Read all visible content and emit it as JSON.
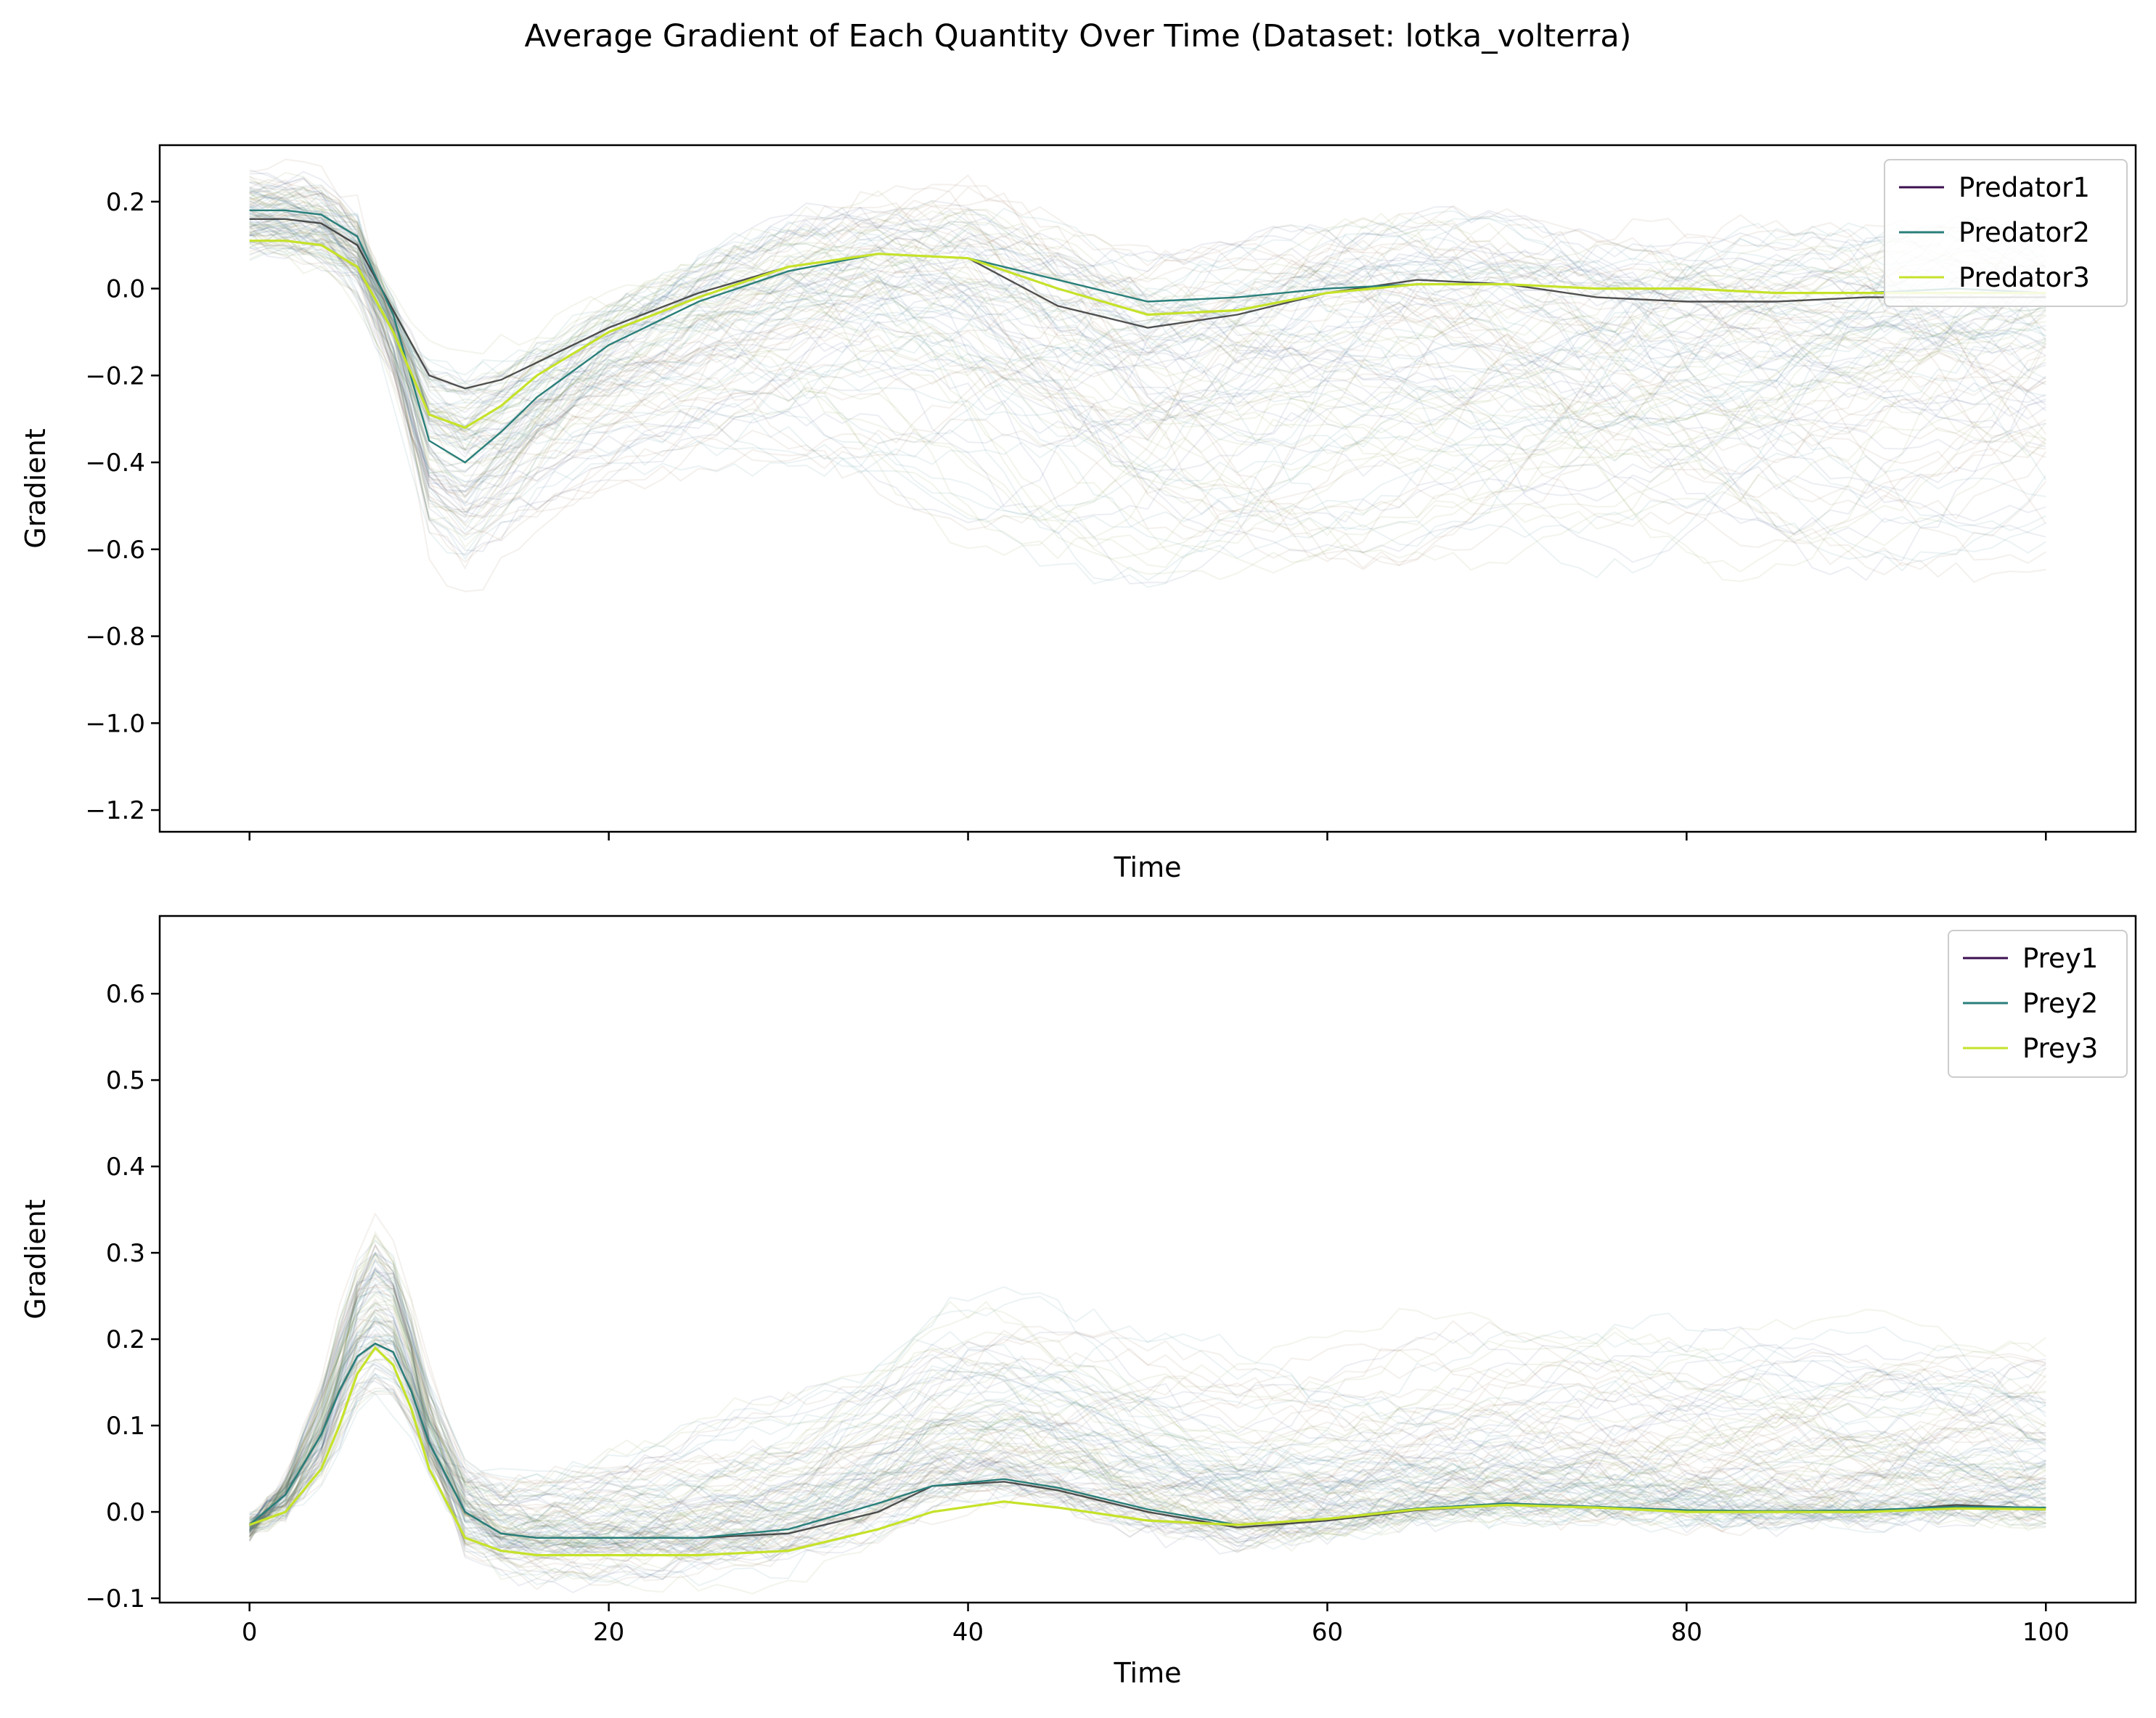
{
  "figure_title": "Average Gradient of Each Quantity Over Time (Dataset: lotka_volterra)",
  "colors": {
    "series1": "#3b0f4f",
    "series2": "#2a7f7a",
    "series3": "#c6e22a",
    "band_green": "#6f8f2a",
    "band_teal": "#2f7f86",
    "band_navy": "#2b3f78",
    "band_brown": "#8a5a3a"
  },
  "chart_data": [
    {
      "type": "line",
      "name": "predators",
      "xlabel": "Time",
      "ylabel": "Gradient",
      "xlim": [
        -5,
        105
      ],
      "ylim": [
        -1.25,
        0.33
      ],
      "xticks": [
        0,
        20,
        40,
        60,
        80,
        100
      ],
      "show_xtick_labels": false,
      "yticks": [
        -1.2,
        -1.0,
        -0.8,
        -0.6,
        -0.4,
        -0.2,
        0.0,
        0.2
      ],
      "ytick_labels": [
        "−1.2",
        "−1.0",
        "−0.8",
        "−0.6",
        "−0.4",
        "−0.2",
        "0.0",
        "0.2"
      ],
      "grid": false,
      "legend_position": "top-right",
      "x": [
        0,
        2,
        4,
        6,
        8,
        10,
        12,
        14,
        16,
        20,
        25,
        30,
        35,
        40,
        45,
        50,
        55,
        60,
        65,
        70,
        75,
        80,
        85,
        90,
        95,
        100
      ],
      "series": [
        {
          "name": "Predator1",
          "values": [
            0.16,
            0.16,
            0.15,
            0.1,
            -0.05,
            -0.2,
            -0.23,
            -0.21,
            -0.17,
            -0.09,
            -0.01,
            0.05,
            0.08,
            0.07,
            -0.04,
            -0.09,
            -0.06,
            -0.01,
            0.02,
            0.01,
            -0.02,
            -0.03,
            -0.03,
            -0.02,
            -0.02,
            -0.02
          ]
        },
        {
          "name": "Predator2",
          "values": [
            0.18,
            0.18,
            0.17,
            0.12,
            -0.06,
            -0.35,
            -0.4,
            -0.33,
            -0.25,
            -0.13,
            -0.03,
            0.04,
            0.08,
            0.07,
            0.02,
            -0.03,
            -0.02,
            0.0,
            0.01,
            0.01,
            0.0,
            0.0,
            -0.01,
            -0.01,
            0.0,
            -0.01
          ]
        },
        {
          "name": "Predator3",
          "values": [
            0.11,
            0.11,
            0.1,
            0.05,
            -0.1,
            -0.29,
            -0.32,
            -0.27,
            -0.2,
            -0.1,
            -0.02,
            0.05,
            0.08,
            0.07,
            0.0,
            -0.06,
            -0.05,
            -0.01,
            0.01,
            0.01,
            0.0,
            0.0,
            -0.01,
            -0.01,
            -0.01,
            -0.01
          ]
        }
      ]
    },
    {
      "type": "line",
      "name": "prey",
      "xlabel": "Time",
      "ylabel": "Gradient",
      "xlim": [
        -5,
        105
      ],
      "ylim": [
        -0.105,
        0.69
      ],
      "xticks": [
        0,
        20,
        40,
        60,
        80,
        100
      ],
      "show_xtick_labels": true,
      "yticks": [
        -0.1,
        0.0,
        0.1,
        0.2,
        0.3,
        0.4,
        0.5,
        0.6
      ],
      "ytick_labels": [
        "−0.1",
        "0.0",
        "0.1",
        "0.2",
        "0.3",
        "0.4",
        "0.5",
        "0.6"
      ],
      "grid": false,
      "legend_position": "top-right",
      "x": [
        0,
        2,
        4,
        5,
        6,
        7,
        8,
        9,
        10,
        12,
        14,
        16,
        20,
        25,
        30,
        35,
        38,
        42,
        45,
        50,
        55,
        60,
        65,
        70,
        75,
        80,
        85,
        90,
        95,
        100
      ],
      "series": [
        {
          "name": "Prey1",
          "values": [
            -0.015,
            0.02,
            0.09,
            0.14,
            0.18,
            0.195,
            0.185,
            0.14,
            0.08,
            0.0,
            -0.025,
            -0.03,
            -0.03,
            -0.03,
            -0.025,
            0.0,
            0.03,
            0.035,
            0.025,
            0.0,
            -0.018,
            -0.01,
            0.002,
            0.008,
            0.005,
            0.0,
            0.0,
            0.0,
            0.008,
            0.004
          ]
        },
        {
          "name": "Prey2",
          "values": [
            -0.015,
            0.02,
            0.09,
            0.14,
            0.18,
            0.195,
            0.185,
            0.14,
            0.08,
            0.0,
            -0.025,
            -0.03,
            -0.03,
            -0.03,
            -0.02,
            0.01,
            0.03,
            0.038,
            0.028,
            0.003,
            -0.015,
            -0.008,
            0.004,
            0.01,
            0.006,
            0.002,
            0.001,
            0.002,
            0.006,
            0.005
          ]
        },
        {
          "name": "Prey3",
          "values": [
            -0.015,
            0.0,
            0.05,
            0.1,
            0.16,
            0.19,
            0.17,
            0.12,
            0.05,
            -0.03,
            -0.045,
            -0.05,
            -0.05,
            -0.05,
            -0.045,
            -0.02,
            0.0,
            0.012,
            0.005,
            -0.01,
            -0.015,
            -0.008,
            0.003,
            0.008,
            0.005,
            0.0,
            0.0,
            0.0,
            0.004,
            0.003
          ]
        }
      ]
    }
  ]
}
